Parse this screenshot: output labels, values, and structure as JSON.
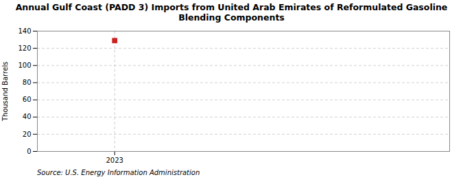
{
  "chart_data": {
    "type": "scatter",
    "title": "Annual Gulf Coast (PADD 3) Imports from United Arab Emirates of Reformulated Gasoline\nBlending Components",
    "ylabel": "Thousand Barrels",
    "source": "Source: U.S. Energy Information Administration",
    "x": [
      2023
    ],
    "values": [
      129
    ],
    "color": "#cc2222",
    "marker": "square",
    "xlim": [
      2022.7,
      2024.3
    ],
    "xticks": [
      2023
    ],
    "ylim": [
      0,
      140
    ],
    "yticks": [
      0,
      20,
      40,
      60,
      80,
      100,
      120,
      140
    ],
    "grid": "y",
    "reference_line": 2023
  }
}
